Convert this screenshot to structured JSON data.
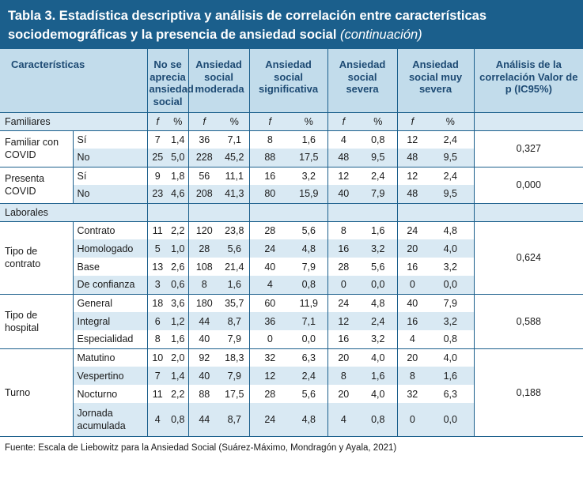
{
  "title": {
    "main": "Tabla 3. Estadística descriptiva y análisis de correlación entre características sociodemográficas y la presencia de ansiedad social",
    "continuation": "(continuación)"
  },
  "headers": {
    "characteristics": "Características",
    "groups": [
      "No se aprecia ansiedad social",
      "Ansiedad social moderada",
      "Ansiedad social significativa",
      "Ansiedad social severa",
      "Ansiedad social muy severa"
    ],
    "correlation": "Análisis de la correlación Valor de p (IC95%)"
  },
  "subheader": {
    "f": "f",
    "pct": "%"
  },
  "sections": [
    {
      "label": "Familiares",
      "groups": [
        {
          "label": "Familiar con COVID",
          "correlation": "0,327",
          "rows": [
            {
              "sub": "Sí",
              "values": [
                "7",
                "1,4",
                "36",
                "7,1",
                "8",
                "1,6",
                "4",
                "0,8",
                "12",
                "2,4"
              ]
            },
            {
              "sub": "No",
              "values": [
                "25",
                "5,0",
                "228",
                "45,2",
                "88",
                "17,5",
                "48",
                "9,5",
                "48",
                "9,5"
              ]
            }
          ]
        },
        {
          "label": "Presenta COVID",
          "correlation": "0,000",
          "rows": [
            {
              "sub": "Sí",
              "values": [
                "9",
                "1,8",
                "56",
                "11,1",
                "16",
                "3,2",
                "12",
                "2,4",
                "12",
                "2,4"
              ]
            },
            {
              "sub": "No",
              "values": [
                "23",
                "4,6",
                "208",
                "41,3",
                "80",
                "15,9",
                "40",
                "7,9",
                "48",
                "9,5"
              ]
            }
          ]
        }
      ]
    },
    {
      "label": "Laborales",
      "groups": [
        {
          "label": "Tipo de contrato",
          "correlation": "0,624",
          "rows": [
            {
              "sub": "Contrato",
              "values": [
                "11",
                "2,2",
                "120",
                "23,8",
                "28",
                "5,6",
                "8",
                "1,6",
                "24",
                "4,8"
              ]
            },
            {
              "sub": "Homologado",
              "values": [
                "5",
                "1,0",
                "28",
                "5,6",
                "24",
                "4,8",
                "16",
                "3,2",
                "20",
                "4,0"
              ]
            },
            {
              "sub": "Base",
              "values": [
                "13",
                "2,6",
                "108",
                "21,4",
                "40",
                "7,9",
                "28",
                "5,6",
                "16",
                "3,2"
              ]
            },
            {
              "sub": "De confianza",
              "values": [
                "3",
                "0,6",
                "8",
                "1,6",
                "4",
                "0,8",
                "0",
                "0,0",
                "0",
                "0,0"
              ]
            }
          ]
        },
        {
          "label": "Tipo de hospital",
          "correlation": "0,588",
          "rows": [
            {
              "sub": "General",
              "values": [
                "18",
                "3,6",
                "180",
                "35,7",
                "60",
                "11,9",
                "24",
                "4,8",
                "40",
                "7,9"
              ]
            },
            {
              "sub": "Integral",
              "values": [
                "6",
                "1,2",
                "44",
                "8,7",
                "36",
                "7,1",
                "12",
                "2,4",
                "16",
                "3,2"
              ]
            },
            {
              "sub": "Especialidad",
              "values": [
                "8",
                "1,6",
                "40",
                "7,9",
                "0",
                "0,0",
                "16",
                "3,2",
                "4",
                "0,8"
              ]
            }
          ]
        },
        {
          "label": "Turno",
          "correlation": "0,188",
          "rows": [
            {
              "sub": "Matutino",
              "values": [
                "10",
                "2,0",
                "92",
                "18,3",
                "32",
                "6,3",
                "20",
                "4,0",
                "20",
                "4,0"
              ]
            },
            {
              "sub": "Vespertino",
              "values": [
                "7",
                "1,4",
                "40",
                "7,9",
                "12",
                "2,4",
                "8",
                "1,6",
                "8",
                "1,6"
              ]
            },
            {
              "sub": "Nocturno",
              "values": [
                "11",
                "2,2",
                "88",
                "17,5",
                "28",
                "5,6",
                "20",
                "4,0",
                "32",
                "6,3"
              ]
            },
            {
              "sub": "Jornada acumulada",
              "values": [
                "4",
                "0,8",
                "44",
                "8,7",
                "24",
                "4,8",
                "4",
                "0,8",
                "0",
                "0,0"
              ]
            }
          ]
        }
      ]
    }
  ],
  "footnote": "Fuente: Escala de Liebowitz para la Ansiedad Social (Suárez-Máximo, Mondragón y Ayala, 2021)"
}
